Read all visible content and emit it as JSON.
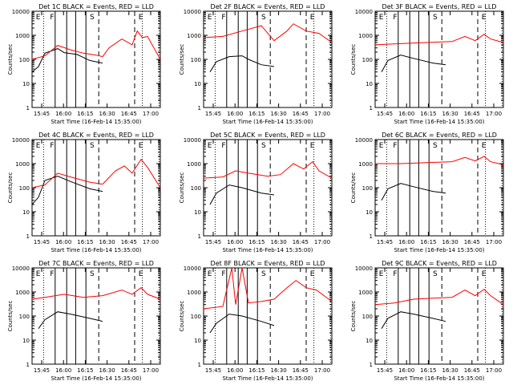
{
  "colors": {
    "events": "#000000",
    "lld": "#ff0000",
    "axes": "#000000"
  },
  "chart_data": [
    {
      "type": "line",
      "title": "Det 1C BLACK = Events, RED = LLD",
      "xlabel": "Start Time (16-Feb-14 15:35:00)",
      "ylabel": "Counts/sec",
      "x_ticks": [
        "15:45",
        "16:00",
        "16:15",
        "16:30",
        "16:45",
        "17:00"
      ],
      "y_ticks": [
        "1",
        "10",
        "100",
        "1000",
        "10000"
      ],
      "ylim": [
        1,
        10000
      ],
      "log_y": true,
      "region_labels": [
        "E",
        "F",
        "S",
        "E"
      ],
      "series": [
        {
          "name": "Events",
          "color": "#000000",
          "points": [
            [
              0,
              30
            ],
            [
              0.05,
              50
            ],
            [
              0.1,
              180
            ],
            [
              0.2,
              280
            ],
            [
              0.25,
              190
            ],
            [
              0.35,
              160
            ],
            [
              0.45,
              90
            ],
            [
              0.55,
              70
            ]
          ]
        },
        {
          "name": "LLD",
          "color": "#ff0000",
          "points": [
            [
              0,
              100
            ],
            [
              0.1,
              140
            ],
            [
              0.2,
              380
            ],
            [
              0.3,
              250
            ],
            [
              0.4,
              180
            ],
            [
              0.5,
              150
            ],
            [
              0.55,
              130
            ],
            [
              0.6,
              300
            ],
            [
              0.7,
              700
            ],
            [
              0.78,
              400
            ],
            [
              0.82,
              1500
            ],
            [
              0.86,
              800
            ],
            [
              0.9,
              900
            ],
            [
              1.0,
              100
            ]
          ]
        }
      ]
    },
    {
      "type": "line",
      "title": "Det 2F BLACK = Events, RED = LLD",
      "xlabel": "Start Time (16-Feb-14 15:35:00)",
      "ylabel": "Counts/sec",
      "x_ticks": [
        "15:45",
        "16:00",
        "16:15",
        "16:30",
        "16:45",
        "17:00"
      ],
      "y_ticks": [
        "1",
        "10",
        "100",
        "1000",
        "10000"
      ],
      "ylim": [
        1,
        10000
      ],
      "log_y": true,
      "region_labels": [
        "E",
        "F",
        "S",
        "E"
      ],
      "series": [
        {
          "name": "Events",
          "color": "#000000",
          "points": [
            [
              0.05,
              30
            ],
            [
              0.1,
              80
            ],
            [
              0.2,
              130
            ],
            [
              0.3,
              140
            ],
            [
              0.35,
              100
            ],
            [
              0.45,
              60
            ],
            [
              0.55,
              50
            ]
          ]
        },
        {
          "name": "LLD",
          "color": "#ff0000",
          "points": [
            [
              0,
              800
            ],
            [
              0.15,
              900
            ],
            [
              0.3,
              1500
            ],
            [
              0.45,
              2500
            ],
            [
              0.55,
              600
            ],
            [
              0.65,
              1500
            ],
            [
              0.7,
              3000
            ],
            [
              0.8,
              1500
            ],
            [
              0.9,
              1200
            ],
            [
              1.0,
              500
            ]
          ]
        }
      ]
    },
    {
      "type": "line",
      "title": "Det 3F BLACK = Events, RED = LLD",
      "xlabel": "Start Time (16-Feb-14 15:35:00)",
      "ylabel": "Counts/sec",
      "x_ticks": [
        "15:45",
        "16:00",
        "16:15",
        "16:30",
        "16:45",
        "17:00"
      ],
      "y_ticks": [
        "1",
        "10",
        "100",
        "1000",
        "10000"
      ],
      "ylim": [
        1,
        10000
      ],
      "log_y": true,
      "region_labels": [
        "E",
        "F",
        "S",
        "E"
      ],
      "series": [
        {
          "name": "Events",
          "color": "#000000",
          "points": [
            [
              0.05,
              30
            ],
            [
              0.1,
              90
            ],
            [
              0.2,
              150
            ],
            [
              0.3,
              110
            ],
            [
              0.45,
              70
            ],
            [
              0.55,
              60
            ]
          ]
        },
        {
          "name": "LLD",
          "color": "#ff0000",
          "points": [
            [
              0,
              400
            ],
            [
              0.2,
              450
            ],
            [
              0.4,
              500
            ],
            [
              0.6,
              550
            ],
            [
              0.7,
              900
            ],
            [
              0.78,
              600
            ],
            [
              0.85,
              1100
            ],
            [
              0.9,
              700
            ],
            [
              1.0,
              500
            ]
          ]
        }
      ]
    },
    {
      "type": "line",
      "title": "Det 4C BLACK = Events, RED = LLD",
      "xlabel": "Start Time (16-Feb-14 15:35:00)",
      "ylabel": "Counts/sec",
      "x_ticks": [
        "15:45",
        "16:00",
        "16:15",
        "16:30",
        "16:45",
        "17:00"
      ],
      "y_ticks": [
        "1",
        "10",
        "100",
        "1000",
        "10000"
      ],
      "ylim": [
        1,
        10000
      ],
      "log_y": true,
      "region_labels": [
        "E",
        "F",
        "S",
        "E"
      ],
      "series": [
        {
          "name": "Events",
          "color": "#000000",
          "points": [
            [
              0,
              20
            ],
            [
              0.05,
              40
            ],
            [
              0.1,
              200
            ],
            [
              0.2,
              300
            ],
            [
              0.3,
              180
            ],
            [
              0.45,
              90
            ],
            [
              0.55,
              70
            ]
          ]
        },
        {
          "name": "LLD",
          "color": "#ff0000",
          "points": [
            [
              0,
              100
            ],
            [
              0.1,
              130
            ],
            [
              0.2,
              400
            ],
            [
              0.3,
              280
            ],
            [
              0.45,
              170
            ],
            [
              0.55,
              140
            ],
            [
              0.65,
              500
            ],
            [
              0.72,
              800
            ],
            [
              0.78,
              400
            ],
            [
              0.85,
              1500
            ],
            [
              0.9,
              700
            ],
            [
              1.0,
              100
            ]
          ]
        }
      ]
    },
    {
      "type": "line",
      "title": "Det 5C BLACK = Events, RED = LLD",
      "xlabel": "Start Time (16-Feb-14 15:35:00)",
      "ylabel": "Counts/sec",
      "x_ticks": [
        "15:45",
        "16:00",
        "16:15",
        "16:30",
        "16:45",
        "17:00"
      ],
      "y_ticks": [
        "1",
        "10",
        "100",
        "1000",
        "10000"
      ],
      "ylim": [
        1,
        10000
      ],
      "log_y": true,
      "region_labels": [
        "E",
        "F",
        "S",
        "E"
      ],
      "series": [
        {
          "name": "Events",
          "color": "#000000",
          "points": [
            [
              0.05,
              20
            ],
            [
              0.1,
              60
            ],
            [
              0.2,
              130
            ],
            [
              0.3,
              100
            ],
            [
              0.45,
              60
            ],
            [
              0.55,
              50
            ]
          ]
        },
        {
          "name": "LLD",
          "color": "#ff0000",
          "points": [
            [
              0,
              250
            ],
            [
              0.15,
              280
            ],
            [
              0.25,
              500
            ],
            [
              0.35,
              400
            ],
            [
              0.5,
              300
            ],
            [
              0.6,
              350
            ],
            [
              0.7,
              1000
            ],
            [
              0.78,
              600
            ],
            [
              0.85,
              1200
            ],
            [
              0.9,
              500
            ],
            [
              1.0,
              250
            ]
          ]
        }
      ]
    },
    {
      "type": "line",
      "title": "Det 6C BLACK = Events, RED = LLD",
      "xlabel": "Start Time (16-Feb-14 15:35:00)",
      "ylabel": "Counts/sec",
      "x_ticks": [
        "15:45",
        "16:00",
        "16:15",
        "16:30",
        "16:45",
        "17:00"
      ],
      "y_ticks": [
        "1",
        "10",
        "100",
        "1000",
        "10000"
      ],
      "ylim": [
        1,
        10000
      ],
      "log_y": true,
      "region_labels": [
        "E",
        "F",
        "S",
        "E"
      ],
      "series": [
        {
          "name": "Events",
          "color": "#000000",
          "points": [
            [
              0.05,
              30
            ],
            [
              0.1,
              90
            ],
            [
              0.2,
              150
            ],
            [
              0.3,
              110
            ],
            [
              0.45,
              70
            ],
            [
              0.55,
              60
            ]
          ]
        },
        {
          "name": "LLD",
          "color": "#ff0000",
          "points": [
            [
              0,
              1000
            ],
            [
              0.2,
              1000
            ],
            [
              0.4,
              1100
            ],
            [
              0.6,
              1200
            ],
            [
              0.7,
              1800
            ],
            [
              0.78,
              1300
            ],
            [
              0.85,
              2000
            ],
            [
              0.9,
              1200
            ],
            [
              1.0,
              900
            ]
          ]
        }
      ]
    },
    {
      "type": "line",
      "title": "Det 7C BLACK = Events, RED = LLD",
      "xlabel": "Start Time (16-Feb-14 15:35:00)",
      "ylabel": "Counts/sec",
      "x_ticks": [
        "15:45",
        "16:00",
        "16:15",
        "16:30",
        "16:45",
        "17:00"
      ],
      "y_ticks": [
        "1",
        "10",
        "100",
        "1000",
        "10000"
      ],
      "ylim": [
        1,
        10000
      ],
      "log_y": true,
      "region_labels": [
        "E",
        "F",
        "S",
        "E"
      ],
      "series": [
        {
          "name": "Events",
          "color": "#000000",
          "points": [
            [
              0.05,
              30
            ],
            [
              0.1,
              70
            ],
            [
              0.2,
              150
            ],
            [
              0.3,
              120
            ],
            [
              0.45,
              80
            ],
            [
              0.55,
              60
            ]
          ]
        },
        {
          "name": "LLD",
          "color": "#ff0000",
          "points": [
            [
              0,
              500
            ],
            [
              0.1,
              600
            ],
            [
              0.25,
              800
            ],
            [
              0.4,
              600
            ],
            [
              0.55,
              700
            ],
            [
              0.7,
              1200
            ],
            [
              0.78,
              800
            ],
            [
              0.85,
              1500
            ],
            [
              0.9,
              800
            ],
            [
              1.0,
              500
            ]
          ]
        }
      ]
    },
    {
      "type": "line",
      "title": "Det 8F BLACK = Events, RED = LLD",
      "xlabel": "Start Time (16-Feb-14 15:35:00)",
      "ylabel": "Counts/sec",
      "x_ticks": [
        "15:45",
        "16:00",
        "16:15",
        "16:30",
        "16:45",
        "17:00"
      ],
      "y_ticks": [
        "1",
        "10",
        "100",
        "1000",
        "10000"
      ],
      "ylim": [
        1,
        10000
      ],
      "log_y": true,
      "region_labels": [
        "E",
        "F",
        "S",
        "E"
      ],
      "series": [
        {
          "name": "Events",
          "color": "#000000",
          "points": [
            [
              0.05,
              20
            ],
            [
              0.1,
              50
            ],
            [
              0.2,
              120
            ],
            [
              0.3,
              100
            ],
            [
              0.45,
              60
            ],
            [
              0.55,
              40
            ]
          ]
        },
        {
          "name": "LLD",
          "color": "#ff0000",
          "points": [
            [
              0,
              200
            ],
            [
              0.15,
              250
            ],
            [
              0.22,
              10000
            ],
            [
              0.25,
              300
            ],
            [
              0.3,
              10000
            ],
            [
              0.35,
              350
            ],
            [
              0.45,
              400
            ],
            [
              0.55,
              500
            ],
            [
              0.65,
              1500
            ],
            [
              0.72,
              3000
            ],
            [
              0.8,
              1500
            ],
            [
              0.88,
              1200
            ],
            [
              1.0,
              400
            ]
          ]
        }
      ]
    },
    {
      "type": "line",
      "title": "Det 9C BLACK = Events, RED = LLD",
      "xlabel": "Start Time (16-Feb-14 15:35:00)",
      "ylabel": "Counts/sec",
      "x_ticks": [
        "15:45",
        "16:00",
        "16:15",
        "16:30",
        "16:45",
        "17:00"
      ],
      "y_ticks": [
        "1",
        "10",
        "100",
        "1000",
        "10000"
      ],
      "ylim": [
        1,
        10000
      ],
      "log_y": true,
      "region_labels": [
        "E",
        "F",
        "S",
        "E"
      ],
      "series": [
        {
          "name": "Events",
          "color": "#000000",
          "points": [
            [
              0.05,
              30
            ],
            [
              0.1,
              80
            ],
            [
              0.2,
              150
            ],
            [
              0.3,
              120
            ],
            [
              0.45,
              80
            ],
            [
              0.55,
              60
            ]
          ]
        },
        {
          "name": "LLD",
          "color": "#ff0000",
          "points": [
            [
              0,
              300
            ],
            [
              0.15,
              350
            ],
            [
              0.3,
              500
            ],
            [
              0.45,
              550
            ],
            [
              0.6,
              600
            ],
            [
              0.7,
              1200
            ],
            [
              0.78,
              700
            ],
            [
              0.85,
              1300
            ],
            [
              0.9,
              700
            ],
            [
              1.0,
              300
            ]
          ]
        }
      ]
    }
  ]
}
